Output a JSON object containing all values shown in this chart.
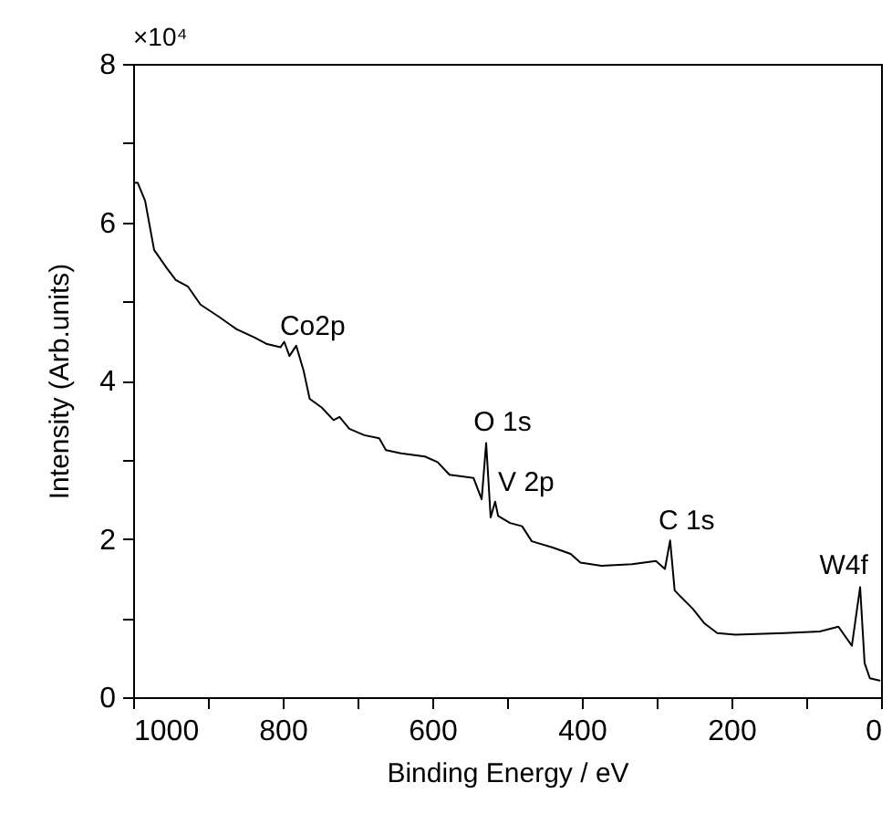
{
  "chart_data": {
    "type": "line",
    "xlabel": "Binding Energy / eV",
    "ylabel": "Intensity (Arb.units)",
    "x": [
      998,
      994,
      984,
      972,
      955,
      943,
      927,
      910,
      886,
      862,
      837,
      821,
      803,
      798,
      791,
      782,
      772,
      764,
      748,
      732,
      724,
      711,
      691,
      671,
      662,
      642,
      610,
      593,
      577,
      545,
      534,
      528,
      522,
      516,
      512,
      496,
      480,
      467,
      439,
      415,
      402,
      374,
      333,
      301,
      289,
      282,
      276,
      268,
      252,
      236,
      219,
      195,
      129,
      82,
      57,
      39,
      28,
      22,
      15,
      2
    ],
    "series": [
      {
        "color": "#000000",
        "values": [
          6.5,
          6.5,
          6.27,
          5.65,
          5.42,
          5.27,
          5.19,
          4.96,
          4.81,
          4.65,
          4.54,
          4.46,
          4.42,
          4.49,
          4.31,
          4.44,
          4.12,
          3.77,
          3.66,
          3.5,
          3.54,
          3.39,
          3.31,
          3.27,
          3.12,
          3.08,
          3.04,
          2.97,
          2.81,
          2.77,
          2.5,
          3.21,
          2.27,
          2.47,
          2.29,
          2.2,
          2.16,
          1.97,
          1.89,
          1.81,
          1.7,
          1.66,
          1.68,
          1.72,
          1.62,
          1.98,
          1.35,
          1.27,
          1.12,
          0.93,
          0.81,
          0.79,
          0.81,
          0.83,
          0.89,
          0.65,
          1.39,
          0.43,
          0.24,
          0.21
        ]
      }
    ],
    "xlim": [
      1000,
      0
    ],
    "xticks": [
      1000,
      {
        "value": 900,
        "label": null
      },
      800,
      {
        "value": 700,
        "label": null
      },
      600,
      {
        "value": 500,
        "label": null
      },
      400,
      {
        "value": 300,
        "label": null
      },
      200,
      {
        "value": 100,
        "label": null
      },
      0
    ],
    "ylim": [
      0,
      8
    ],
    "yticks": [
      0,
      {
        "value": 1,
        "label": null
      },
      2,
      {
        "value": 3,
        "label": null
      },
      4,
      {
        "value": 5,
        "label": null
      },
      6,
      {
        "value": 7,
        "label": null
      },
      8
    ],
    "annotations": [
      "×10⁴",
      {
        "text": "Co2p",
        "x": 782,
        "y": 4.44
      },
      {
        "text": "O 1s",
        "x": 528,
        "y": 3.21
      },
      {
        "text": "V 2p",
        "x": 516,
        "y": 2.47
      },
      {
        "text": "C 1s",
        "x": 282,
        "y": 1.98
      },
      {
        "text": "W4f",
        "x": 28,
        "y": 1.39
      }
    ],
    "grid": false
  }
}
